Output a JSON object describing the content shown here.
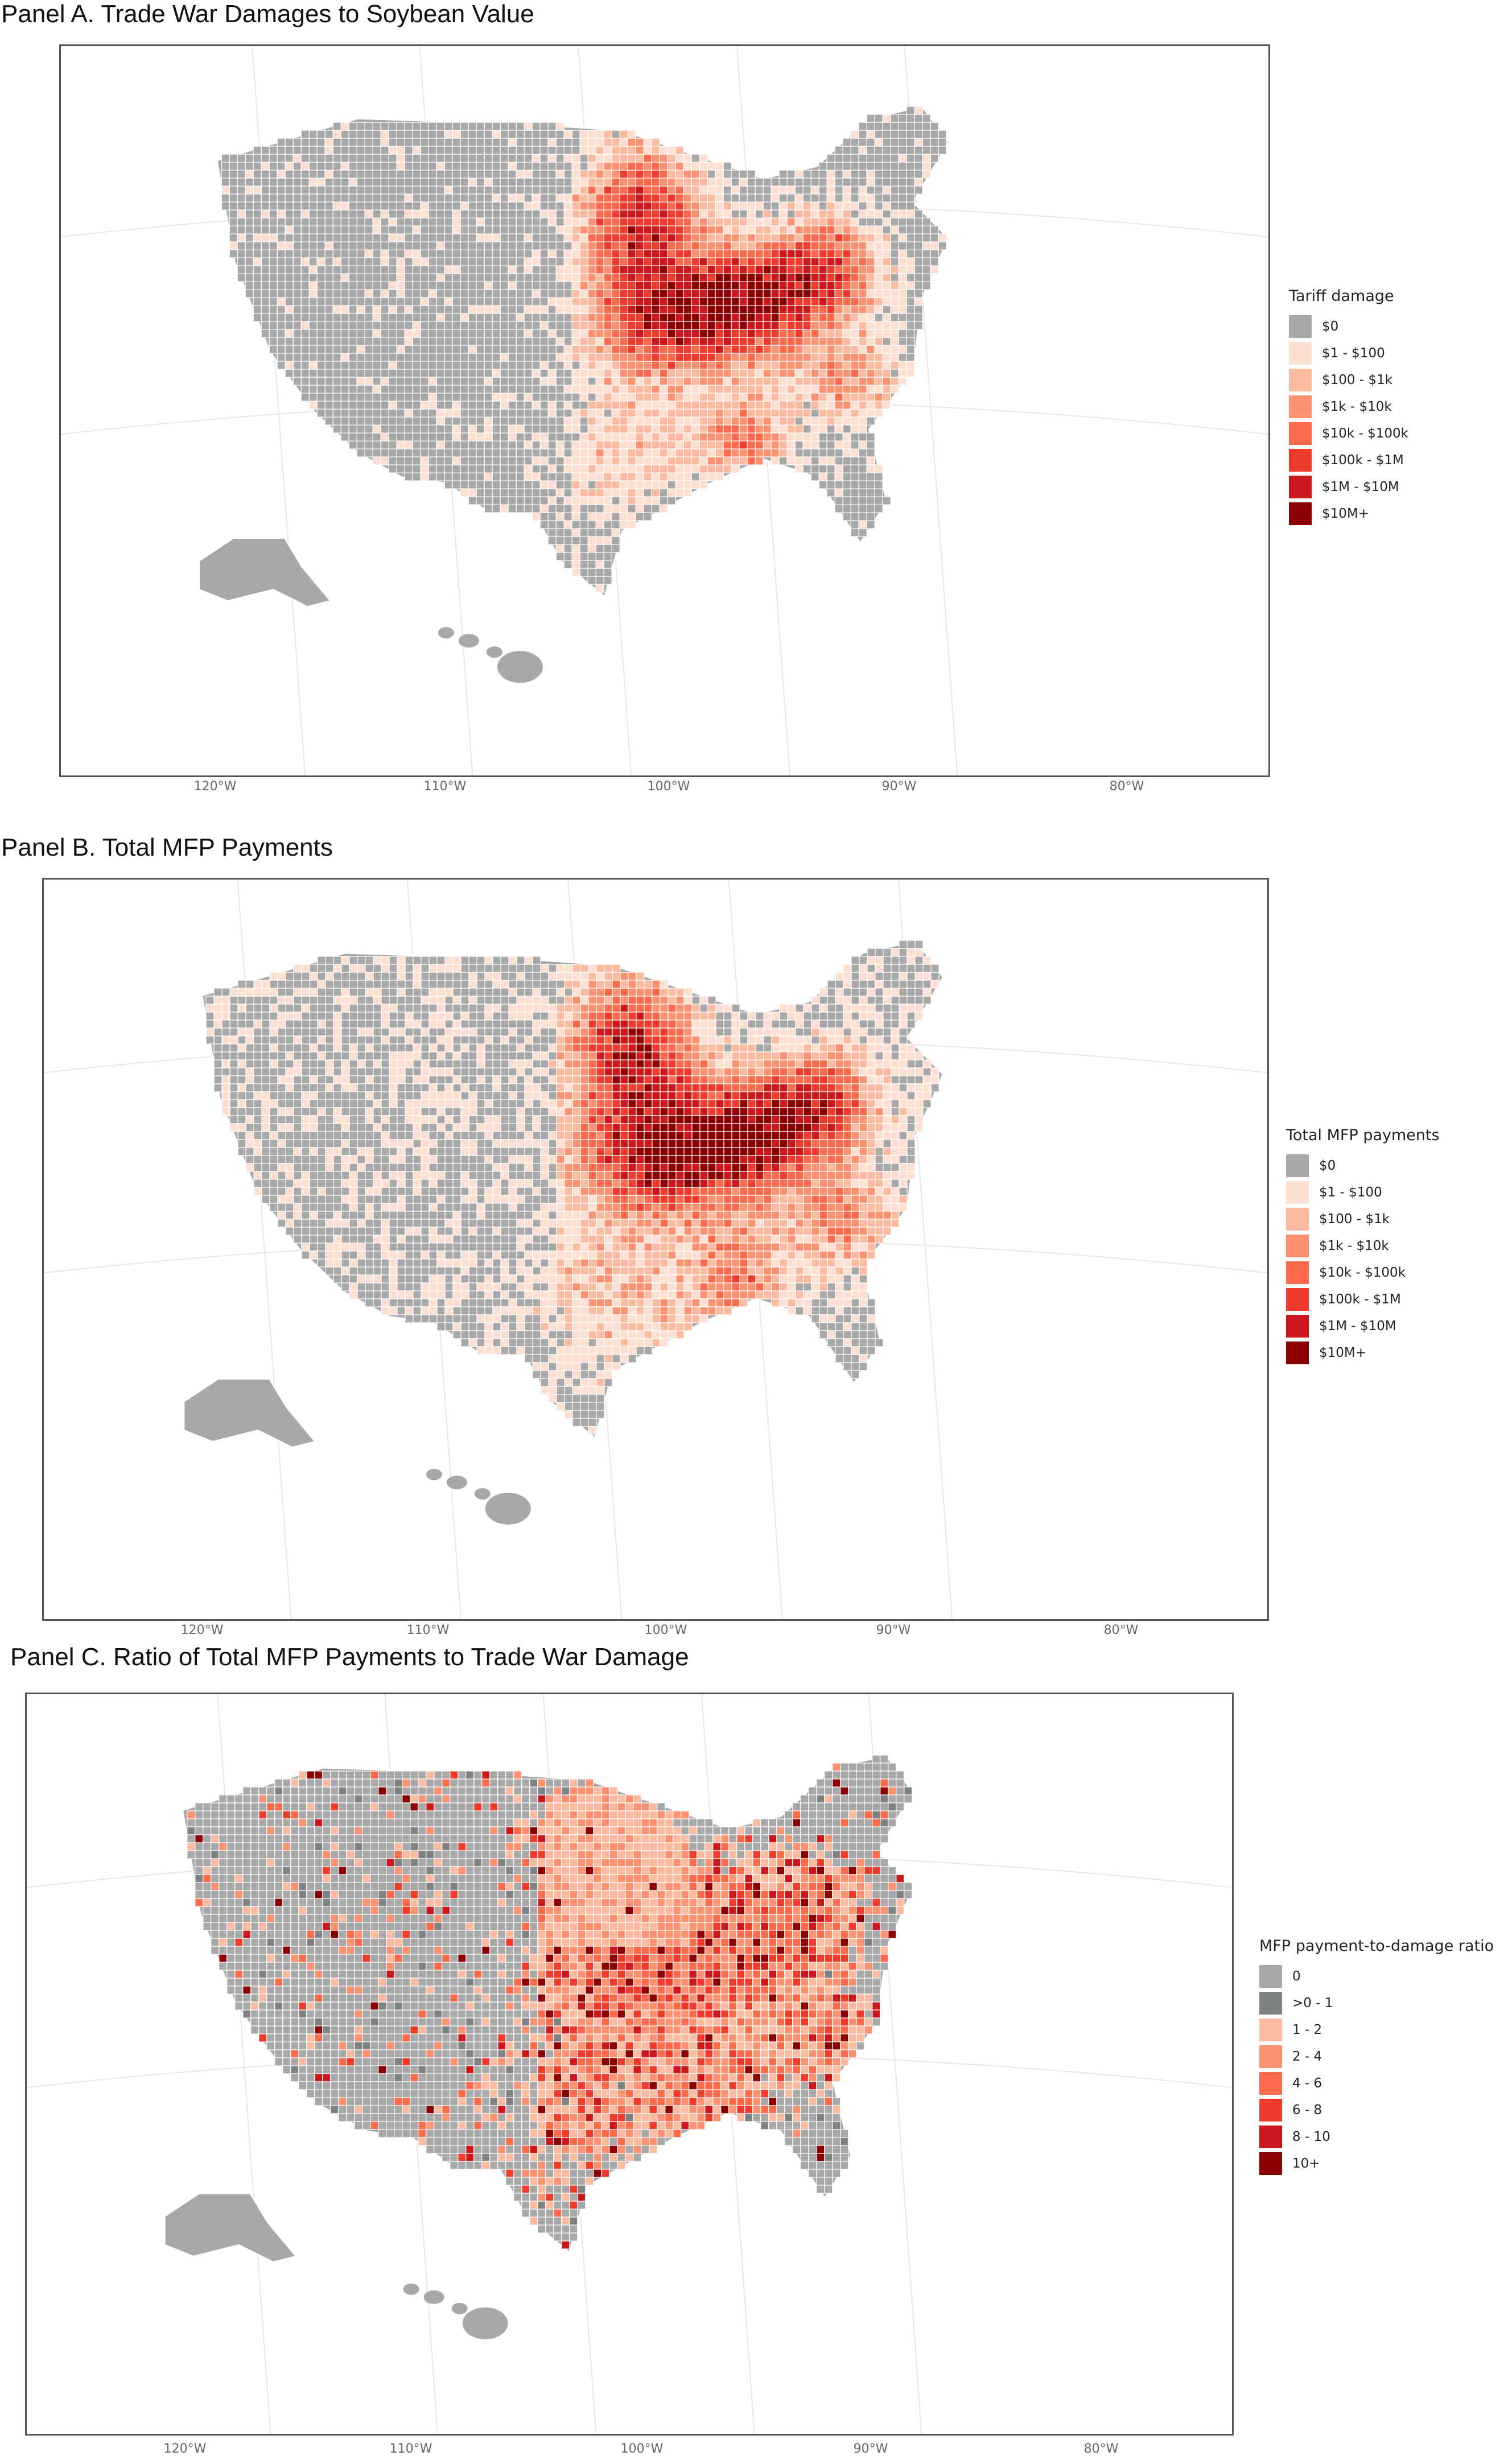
{
  "panels": [
    {
      "id": "a",
      "title": "Panel A. Trade War Damages to Soybean Value",
      "legend_title": "Tariff damage",
      "legend": [
        {
          "label": "$0",
          "color": "#a8a8a8"
        },
        {
          "label": "$1 - $100",
          "color": "#fde0d2"
        },
        {
          "label": "$100 - $1k",
          "color": "#fcbba1"
        },
        {
          "label": "$1k - $10k",
          "color": "#fc9272"
        },
        {
          "label": "$10k - $100k",
          "color": "#fb6a4a"
        },
        {
          "label": "$100k - $1M",
          "color": "#ef3b2c"
        },
        {
          "label": "$1M - $10M",
          "color": "#cb181d"
        },
        {
          "label": "$10M+",
          "color": "#8b0000"
        }
      ]
    },
    {
      "id": "b",
      "title": "Panel B. Total MFP Payments",
      "legend_title": "Total MFP payments",
      "legend": [
        {
          "label": "$0",
          "color": "#a8a8a8"
        },
        {
          "label": "$1 - $100",
          "color": "#fde0d2"
        },
        {
          "label": "$100 - $1k",
          "color": "#fcbba1"
        },
        {
          "label": "$1k - $10k",
          "color": "#fc9272"
        },
        {
          "label": "$10k - $100k",
          "color": "#fb6a4a"
        },
        {
          "label": "$100k - $1M",
          "color": "#ef3b2c"
        },
        {
          "label": "$1M - $10M",
          "color": "#cb181d"
        },
        {
          "label": "$10M+",
          "color": "#8b0000"
        }
      ]
    },
    {
      "id": "c",
      "title": "Panel C. Ratio of Total MFP Payments to Trade War Damage",
      "legend_title": "MFP payment-to-damage ratio",
      "legend": [
        {
          "label": "0",
          "color": "#a8a8a8"
        },
        {
          "label": ">0 - 1",
          "color": "#7f8283"
        },
        {
          "label": "1 - 2",
          "color": "#fcbba1"
        },
        {
          "label": "2 - 4",
          "color": "#fc9272"
        },
        {
          "label": "4 - 6",
          "color": "#fb6a4a"
        },
        {
          "label": "6 - 8",
          "color": "#ef3b2c"
        },
        {
          "label": "8 - 10",
          "color": "#cb181d"
        },
        {
          "label": "10+",
          "color": "#8b0000"
        }
      ]
    }
  ],
  "longitude_labels": [
    "120°W",
    "110°W",
    "100°W",
    "90°W",
    "80°W"
  ],
  "colors": {
    "no_data_gray": "#a8a8a8",
    "county_border": "#ffffff",
    "graticule": "#e6e6e6",
    "frame": "#555555"
  }
}
